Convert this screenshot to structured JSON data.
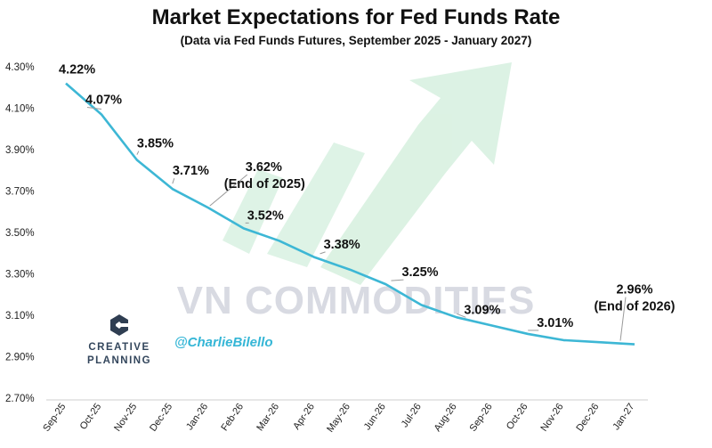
{
  "chart_data": {
    "type": "line",
    "title": "Market Expectations for Fed Funds Rate",
    "subtitle": "(Data via Fed Funds Futures, September 2025 - January 2027)",
    "categories": [
      "Sep-25",
      "Oct-25",
      "Nov-25",
      "Dec-25",
      "Jan-26",
      "Feb-26",
      "Mar-26",
      "Apr-26",
      "May-26",
      "Jun-26",
      "Jul-26",
      "Aug-26",
      "Sep-26",
      "Oct-26",
      "Nov-26",
      "Dec-26",
      "Jan-27"
    ],
    "series": [
      {
        "values": [
          4.22,
          4.07,
          3.85,
          3.71,
          3.62,
          3.52,
          3.46,
          3.38,
          3.32,
          3.25,
          3.15,
          3.09,
          3.05,
          3.01,
          2.98,
          2.97,
          2.96
        ]
      }
    ],
    "yticks": [
      "4.30%",
      "4.10%",
      "3.90%",
      "3.70%",
      "3.50%",
      "3.30%",
      "3.10%",
      "2.90%",
      "2.70%"
    ],
    "ylim": [
      2.7,
      4.3
    ],
    "xlabel": "",
    "ylabel": "",
    "grid": false,
    "line_color": "#3db7d5",
    "annotations": [
      {
        "index": 0,
        "line1": "4.22%",
        "line2": ""
      },
      {
        "index": 1,
        "line1": "4.07%",
        "line2": ""
      },
      {
        "index": 2,
        "line1": "3.85%",
        "line2": ""
      },
      {
        "index": 3,
        "line1": "3.71%",
        "line2": ""
      },
      {
        "index": 4,
        "line1": "3.62%",
        "line2": "(End of 2025)"
      },
      {
        "index": 5,
        "line1": "3.52%",
        "line2": ""
      },
      {
        "index": 7,
        "line1": "3.38%",
        "line2": ""
      },
      {
        "index": 9,
        "line1": "3.25%",
        "line2": ""
      },
      {
        "index": 11,
        "line1": "3.09%",
        "line2": ""
      },
      {
        "index": 13,
        "line1": "3.01%",
        "line2": ""
      },
      {
        "index": 16,
        "line1": "2.96%",
        "line2": "(End of 2026)"
      }
    ]
  },
  "watermark": "VN COMMODITIES",
  "logo": {
    "line1": "CREATIVE",
    "line2": "PLANNING",
    "mark": "C"
  },
  "handle": "@CharlieBilello",
  "colors": {
    "arrow": "#d6f0df",
    "line": "#3db7d5",
    "text": "#111111"
  }
}
